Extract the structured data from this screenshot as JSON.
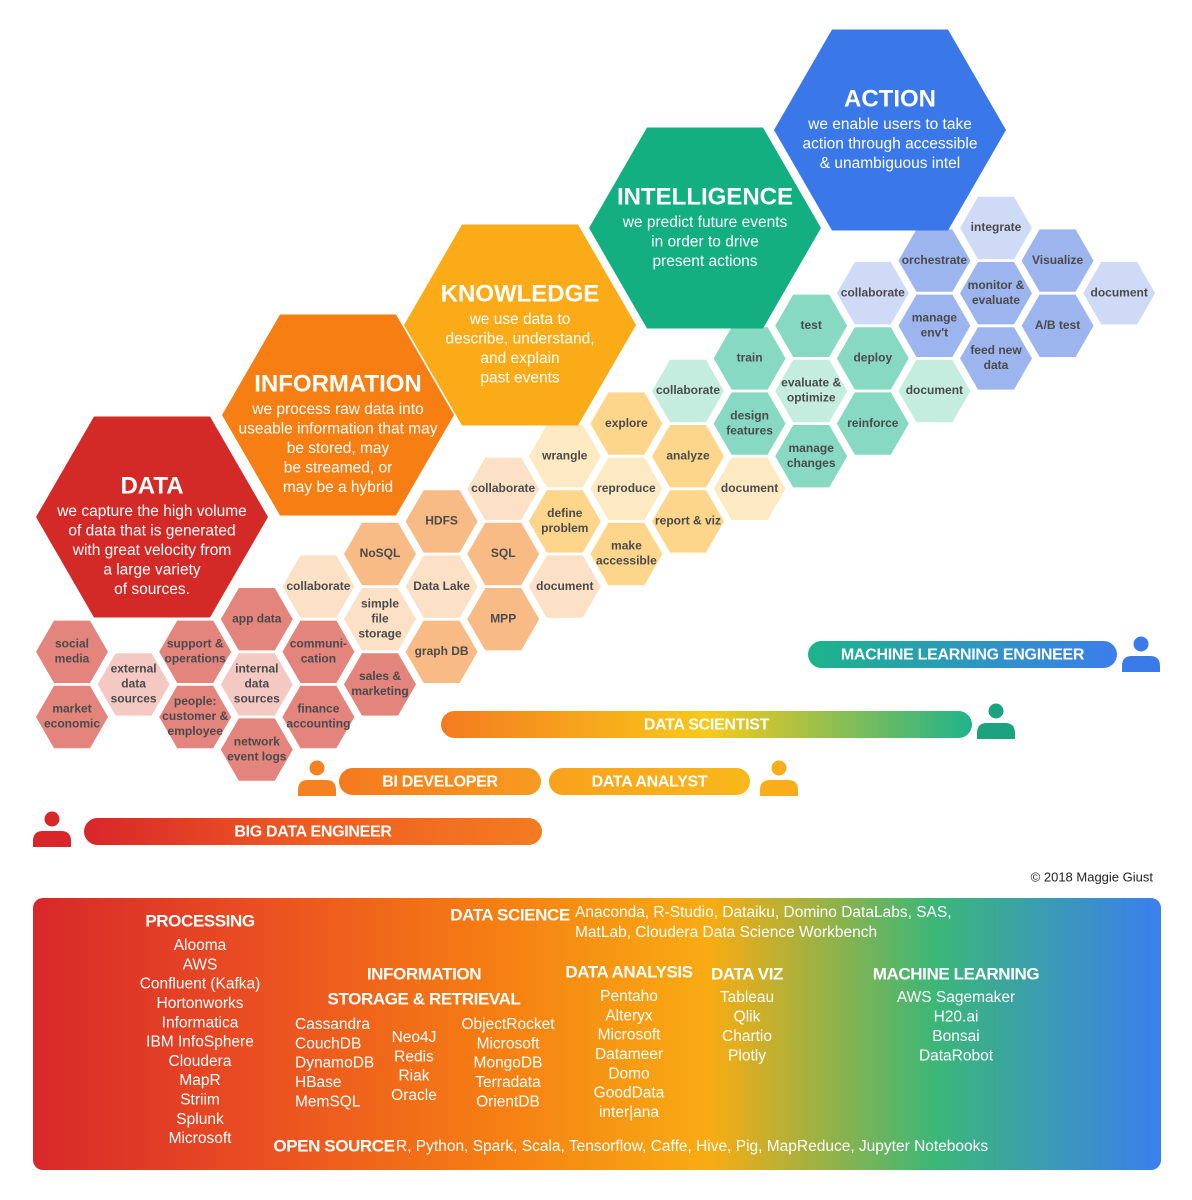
{
  "stages": [
    {
      "title": "DATA",
      "description": [
        "we capture the high volume",
        "of data that is generated",
        "with great velocity from",
        "a large variety",
        "of sources."
      ],
      "color": "#d42a27",
      "task_color": "#e3847d",
      "light_color": "#f5c9c3",
      "tasks": [
        {
          "lines": [
            "social",
            "media"
          ]
        },
        {
          "lines": [
            "market",
            "economic"
          ]
        },
        {
          "lines": [
            "external",
            "data",
            "sources"
          ],
          "light": true
        },
        {
          "lines": [
            "support &",
            "operations"
          ]
        },
        {
          "lines": [
            "people:",
            "customer &",
            "employee"
          ]
        },
        {
          "lines": [
            "app data"
          ]
        },
        {
          "lines": [
            "internal",
            "data",
            "sources"
          ],
          "light": true
        },
        {
          "lines": [
            "network",
            "event logs"
          ]
        },
        {
          "lines": [
            "communi-",
            "cation"
          ]
        },
        {
          "lines": [
            "finance",
            "accounting"
          ]
        },
        {
          "lines": [
            "sales &",
            "marketing"
          ]
        }
      ]
    },
    {
      "title": "INFORMATION",
      "description": [
        "we process raw data into",
        "useable information that may",
        "be stored, may",
        "be streamed, or",
        "may be a hybrid"
      ],
      "color": "#f67e13",
      "task_color": "#f9bb86",
      "light_color": "#fde1c6",
      "tasks": [
        {
          "lines": [
            "collaborate"
          ],
          "light": true
        },
        {
          "lines": [
            "NoSQL"
          ]
        },
        {
          "lines": [
            "simple",
            "file",
            "storage"
          ],
          "light": true
        },
        {
          "lines": [
            "HDFS"
          ]
        },
        {
          "lines": [
            "Data Lake"
          ],
          "light": true
        },
        {
          "lines": [
            "graph DB"
          ]
        },
        {
          "lines": [
            "SQL"
          ]
        },
        {
          "lines": [
            "MPP"
          ]
        },
        {
          "lines": [
            "collaborate"
          ],
          "light": true
        },
        {
          "lines": [
            "document"
          ],
          "light": true
        }
      ]
    },
    {
      "title": "KNOWLEDGE",
      "description": [
        "we use data to",
        "describe, understand,",
        "and explain",
        "past events"
      ],
      "color": "#fbab17",
      "task_color": "#fdd68c",
      "light_color": "#feeac2",
      "tasks": [
        {
          "lines": [
            "wrangle"
          ],
          "light": true
        },
        {
          "lines": [
            "define",
            "problem"
          ]
        },
        {
          "lines": [
            "explore"
          ]
        },
        {
          "lines": [
            "reproduce"
          ],
          "light": true
        },
        {
          "lines": [
            "make",
            "accessible"
          ]
        },
        {
          "lines": [
            "analyze"
          ]
        },
        {
          "lines": [
            "report & viz"
          ]
        },
        {
          "lines": [
            "document"
          ],
          "light": true
        }
      ]
    },
    {
      "title": "INTELLIGENCE",
      "description": [
        "we predict future events",
        "in order to drive",
        "present actions"
      ],
      "color": "#14af80",
      "task_color": "#88d9c1",
      "light_color": "#c5eddf",
      "tasks": [
        {
          "lines": [
            "collaborate"
          ],
          "light": true
        },
        {
          "lines": [
            "train"
          ]
        },
        {
          "lines": [
            "design",
            "features"
          ]
        },
        {
          "lines": [
            "test"
          ]
        },
        {
          "lines": [
            "evaluate &",
            "optimize"
          ],
          "light": true
        },
        {
          "lines": [
            "manage",
            "changes"
          ]
        },
        {
          "lines": [
            "deploy"
          ]
        },
        {
          "lines": [
            "reinforce"
          ]
        },
        {
          "lines": [
            "document"
          ],
          "light": true
        }
      ]
    },
    {
      "title": "ACTION",
      "description": [
        "we enable users to take",
        "action through accessible",
        "& unambiguous intel"
      ],
      "color": "#3a78ea",
      "task_color": "#9db5ef",
      "light_color": "#cfdaf7",
      "tasks": [
        {
          "lines": [
            "collaborate"
          ],
          "light": true
        },
        {
          "lines": [
            "orchestrate"
          ]
        },
        {
          "lines": [
            "manage",
            "env't"
          ]
        },
        {
          "lines": [
            "integrate"
          ],
          "light": true
        },
        {
          "lines": [
            "monitor &",
            "evaluate"
          ]
        },
        {
          "lines": [
            "feed new",
            "data"
          ]
        },
        {
          "lines": [
            "Visualize"
          ]
        },
        {
          "lines": [
            "A/B test"
          ]
        },
        {
          "lines": [
            "document"
          ],
          "light": true
        }
      ]
    }
  ],
  "roles": [
    {
      "title": "MACHINE LEARNING ENGINEER",
      "colors": [
        "#1cb48a",
        "#3c7ded"
      ],
      "icon_color": "#3a7be9"
    },
    {
      "title": "DATA SCIENTIST",
      "colors": [
        "#f47b1f",
        "#f8c91a",
        "#1fb38a"
      ],
      "icon_color": "#1aa37e"
    },
    {
      "title": "BI DEVELOPER",
      "colors": [
        "#f57a1e",
        "#f79b21"
      ],
      "icon_color": "#f58220"
    },
    {
      "title": "DATA ANALYST",
      "colors": [
        "#f9a11b",
        "#f9b81b"
      ],
      "icon_color": "#f9ad1b"
    },
    {
      "title": "BIG DATA ENGINEER",
      "colors": [
        "#d8262a",
        "#ef5d22",
        "#f47b20"
      ],
      "icon_color": "#d8262a"
    }
  ],
  "copyright": "© 2018 Maggie Giust",
  "tools": {
    "colors": [
      "#d7282a",
      "#ea4f22",
      "#f57c13",
      "#f8ac13",
      "#3bb778",
      "#3b7fee"
    ],
    "sections": [
      {
        "title": [
          "PROCESSING"
        ],
        "columns": [
          [
            "Alooma",
            "AWS",
            "Confluent (Kafka)",
            "Hortonworks",
            "Informatica",
            "IBM InfoSphere",
            "Cloudera",
            "MapR",
            "Striim",
            "Splunk",
            "Microsoft"
          ]
        ]
      },
      {
        "title": [
          "DATA SCIENCE"
        ],
        "columns": [
          [
            "Anaconda, R-Studio, Dataiku, Domino DataLabs, SAS,",
            "MatLab, Cloudera Data Science Workbench"
          ]
        ]
      },
      {
        "title": [
          "INFORMATION",
          "STORAGE & RETRIEVAL"
        ],
        "columns": [
          [
            "Cassandra",
            "CouchDB",
            "DynamoDB",
            "HBase",
            "MemSQL"
          ],
          [
            "Neo4J",
            "Redis",
            "Riak",
            "Oracle"
          ],
          [
            "ObjectRocket",
            "Microsoft",
            "MongoDB",
            "Terradata",
            "OrientDB"
          ]
        ]
      },
      {
        "title": [
          "DATA ANALYSIS"
        ],
        "columns": [
          [
            "Pentaho",
            "Alteryx",
            "Microsoft",
            "Datameer",
            "Domo",
            "GoodData",
            "inter|ana"
          ]
        ]
      },
      {
        "title": [
          "DATA VIZ"
        ],
        "columns": [
          [
            "Tableau",
            "Qlik",
            "Chartio",
            "Plotly"
          ]
        ]
      },
      {
        "title": [
          "MACHINE LEARNING"
        ],
        "columns": [
          [
            "AWS Sagemaker",
            "H20.ai",
            "Bonsai",
            "DataRobot"
          ]
        ]
      },
      {
        "title": [
          "OPEN SOURCE"
        ],
        "columns": [
          [
            "R, Python, Spark, Scala, Tensorflow, Caffe, Hive, Pig, MapReduce, Jupyter Notebooks"
          ]
        ]
      }
    ]
  }
}
